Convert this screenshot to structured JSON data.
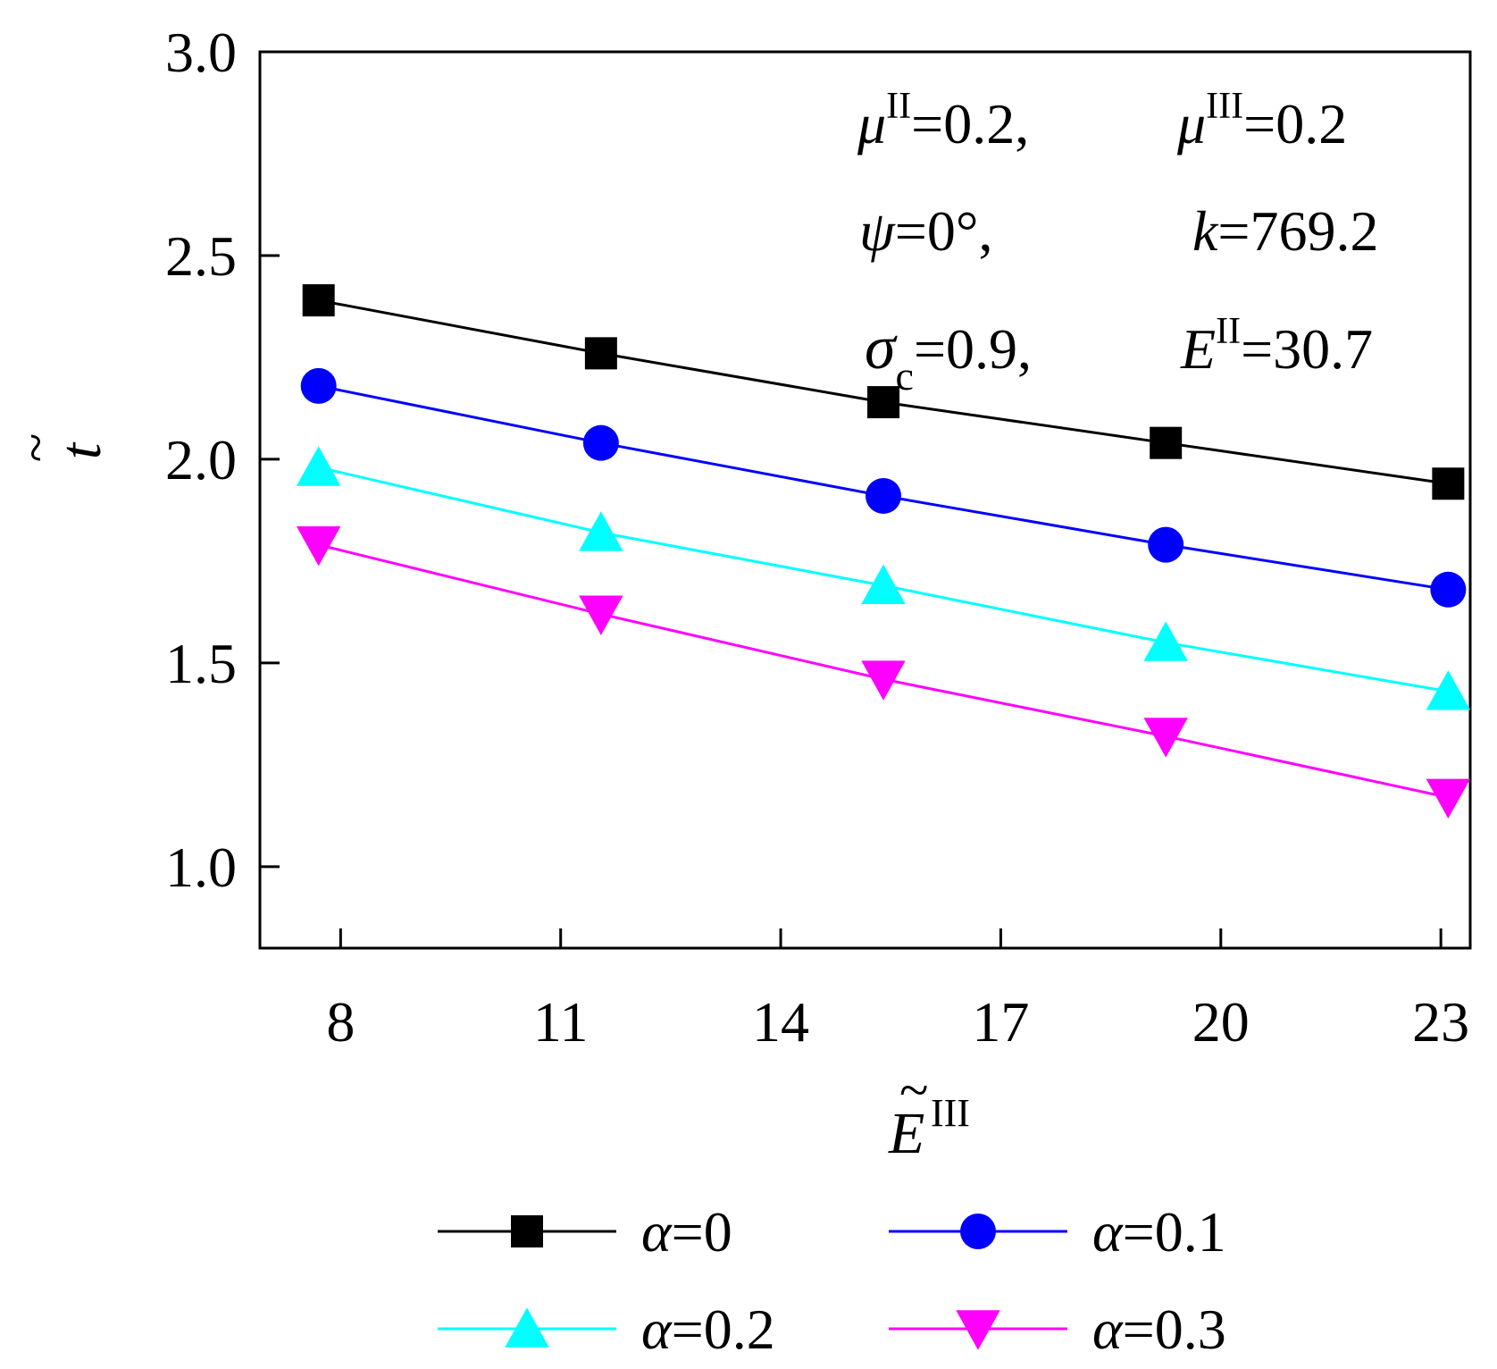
{
  "chart_data": {
    "type": "line",
    "x": [
      7.7,
      11.55,
      15.4,
      19.25,
      23.1
    ],
    "series": [
      {
        "name": "α=0",
        "alpha_label": "α",
        "value_label": "=0",
        "color": "#000000",
        "marker": "square",
        "values": [
          2.39,
          2.26,
          2.14,
          2.04,
          1.94
        ]
      },
      {
        "name": "α=0.1",
        "alpha_label": "α",
        "value_label": "=0.1",
        "color": "#0000ff",
        "marker": "circle",
        "values": [
          2.18,
          2.04,
          1.91,
          1.79,
          1.68
        ]
      },
      {
        "name": "α=0.2",
        "alpha_label": "α",
        "value_label": "=0.2",
        "color": "#00ffff",
        "marker": "triangle-up",
        "values": [
          1.98,
          1.82,
          1.69,
          1.55,
          1.43
        ]
      },
      {
        "name": "α=0.3",
        "alpha_label": "α",
        "value_label": "=0.3",
        "color": "#ff00ff",
        "marker": "triangle-down",
        "values": [
          1.79,
          1.62,
          1.46,
          1.32,
          1.17
        ]
      }
    ],
    "xlim": [
      6.9,
      23.4
    ],
    "ylim": [
      0.8,
      3.0
    ],
    "xticks": [
      8,
      11,
      14,
      17,
      20,
      23
    ],
    "xtick_labels": [
      "8",
      "11",
      "14",
      "17",
      "20",
      "23"
    ],
    "yticks": [
      1.0,
      1.5,
      2.0,
      2.5,
      3.0
    ],
    "ytick_labels": [
      "1.0",
      "1.5",
      "2.0",
      "2.5",
      "3.0"
    ],
    "xlabel": {
      "base": "E",
      "tilde": "~",
      "sup": "III"
    },
    "ylabel": {
      "base": "t",
      "tilde": "~"
    },
    "legend_position": "bottom",
    "grid": false,
    "annotations": {
      "mu2": {
        "sym": "μ",
        "sup": "II",
        "val": "=0.2,"
      },
      "mu3": {
        "sym": "μ",
        "sup": "III",
        "val": "=0.2"
      },
      "psi": {
        "sym": "ψ",
        "val": "=0°,"
      },
      "k": {
        "sym": "k",
        "val": "=769.2"
      },
      "sigma": {
        "sym": "σ",
        "sub": "c",
        "val": "=0.9,"
      },
      "E2": {
        "sym": "E",
        "sup": "II",
        "val": "=30.7"
      }
    }
  }
}
